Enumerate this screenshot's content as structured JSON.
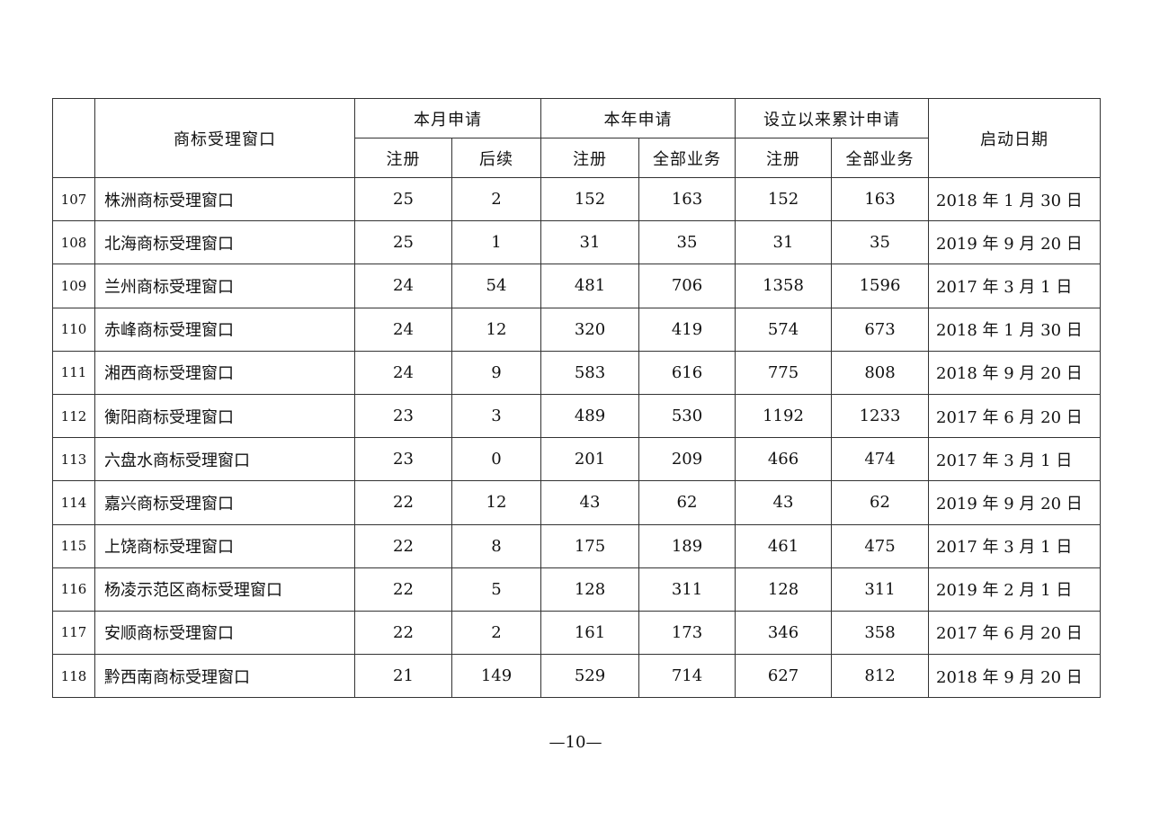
{
  "header": {
    "window_name": "商标受理窗口",
    "month_group": "本月申请",
    "year_group": "本年申请",
    "cumulative_group": "设立以来累计申请",
    "start_date": "启动日期",
    "sub": {
      "month_register": "注册",
      "month_followup": "后续",
      "year_register": "注册",
      "year_all": "全部业务",
      "cum_register": "注册",
      "cum_all": "全部业务"
    }
  },
  "rows": [
    [
      "107",
      "株洲商标受理窗口",
      "25",
      "2",
      "152",
      "163",
      "152",
      "163",
      "2018 年 1 月 30 日"
    ],
    [
      "108",
      "北海商标受理窗口",
      "25",
      "1",
      "31",
      "35",
      "31",
      "35",
      "2019 年 9 月 20 日"
    ],
    [
      "109",
      "兰州商标受理窗口",
      "24",
      "54",
      "481",
      "706",
      "1358",
      "1596",
      "2017 年 3 月 1 日"
    ],
    [
      "110",
      "赤峰商标受理窗口",
      "24",
      "12",
      "320",
      "419",
      "574",
      "673",
      "2018 年 1 月 30 日"
    ],
    [
      "111",
      "湘西商标受理窗口",
      "24",
      "9",
      "583",
      "616",
      "775",
      "808",
      "2018 年 9 月 20 日"
    ],
    [
      "112",
      "衡阳商标受理窗口",
      "23",
      "3",
      "489",
      "530",
      "1192",
      "1233",
      "2017 年 6 月 20 日"
    ],
    [
      "113",
      "六盘水商标受理窗口",
      "23",
      "0",
      "201",
      "209",
      "466",
      "474",
      "2017 年 3 月 1 日"
    ],
    [
      "114",
      "嘉兴商标受理窗口",
      "22",
      "12",
      "43",
      "62",
      "43",
      "62",
      "2019 年 9 月 20 日"
    ],
    [
      "115",
      "上饶商标受理窗口",
      "22",
      "8",
      "175",
      "189",
      "461",
      "475",
      "2017 年 3 月 1 日"
    ],
    [
      "116",
      "杨凌示范区商标受理窗口",
      "22",
      "5",
      "128",
      "311",
      "128",
      "311",
      "2019 年 2 月 1 日"
    ],
    [
      "117",
      "安顺商标受理窗口",
      "22",
      "2",
      "161",
      "173",
      "346",
      "358",
      "2017 年 6 月 20 日"
    ],
    [
      "118",
      "黔西南商标受理窗口",
      "21",
      "149",
      "529",
      "714",
      "627",
      "812",
      "2018 年 9 月 20 日"
    ]
  ],
  "page_number": "—10—"
}
